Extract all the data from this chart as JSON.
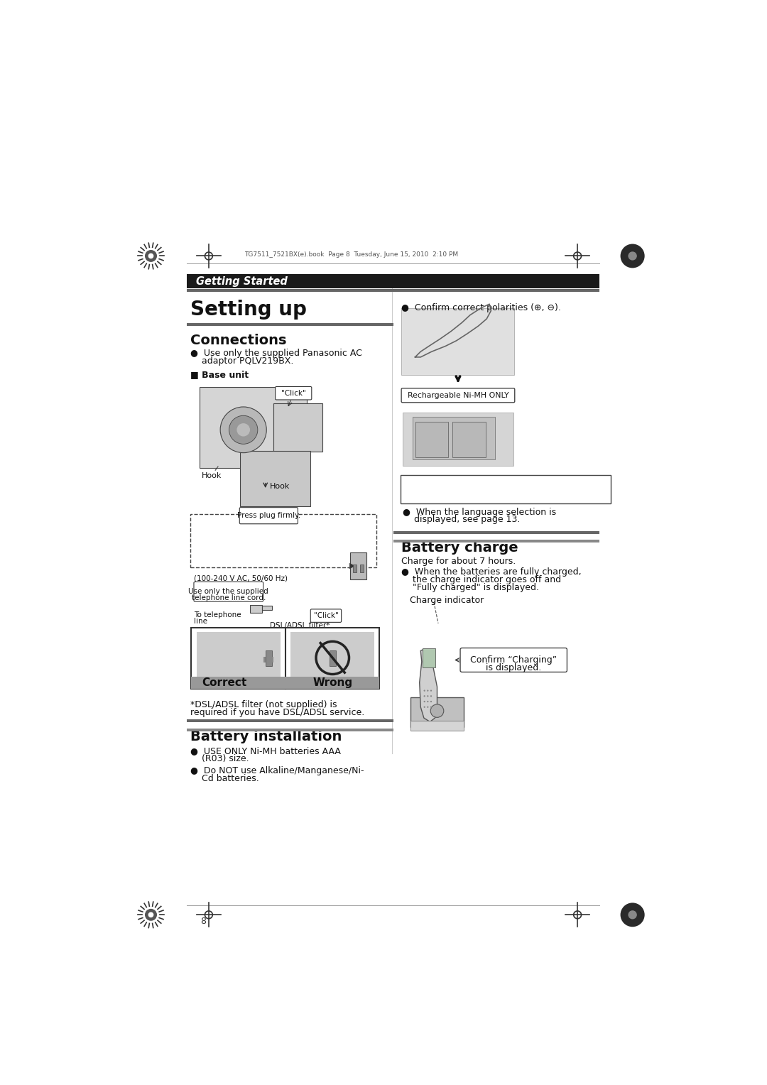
{
  "bg_color": "#ffffff",
  "page_width": 10.8,
  "page_height": 15.28,
  "header_bar_color": "#1a1a1a",
  "header_text": "Getting Started",
  "header_text_color": "#ffffff",
  "title": "Setting up",
  "title_fontsize": 20,
  "section1_heading": "Connections",
  "section1_heading_fontsize": 14,
  "section1_bullet1_line1": "●  Use only the supplied Panasonic AC",
  "section1_bullet1_line2": "    adaptor PQLV219BX.",
  "section1_subhead": "■ Base unit",
  "correct_label": "Correct",
  "wrong_label": "Wrong",
  "dsl_note_line1": "*DSL/ADSL filter (not supplied) is",
  "dsl_note_line2": "required if you have DSL/ADSL service.",
  "section2_heading": "Battery installation",
  "section2_heading_fontsize": 14,
  "section2_bullet1_line1": "●  USE ONLY Ni-MH batteries AAA",
  "section2_bullet1_line2": "    (R03) size.",
  "section2_bullet2_line1": "●  Do NOT use Alkaline/Manganese/Ni-",
  "section2_bullet2_line2": "    Cd batteries.",
  "right_bullet1": "●  Confirm correct polarities (⊕, ⊖).",
  "rechargeable_label": "Rechargeable Ni-MH ONLY",
  "lang_note_line1": "●  When the language selection is",
  "lang_note_line2": "    displayed, see page 13.",
  "section3_heading": "Battery charge",
  "section3_heading_fontsize": 14,
  "section3_intro": "Charge for about 7 hours.",
  "section3_b1_line1": "●  When the batteries are fully charged,",
  "section3_b1_line2": "    the charge indicator goes off and",
  "section3_b1_line3": "    \"Fully charged\" is displayed.",
  "charge_indicator_label": "Charge indicator",
  "confirm_line1": "Confirm “Charging”",
  "confirm_line2": "is displayed.",
  "hook_label1": "Hook",
  "hook_label2": "Hook",
  "press_plug": "Press plug firmly.",
  "voltage_label": "(100-240 V AC, 50/60 Hz)",
  "use_only_cord_line1": "Use only the supplied",
  "use_only_cord_line2": "telephone line cord.",
  "to_tel_line1": "To telephone",
  "to_tel_line2": "line",
  "dsl_filter": "DSL/ADSL filter*",
  "click1": "\"Click\"",
  "click2": "\"Click\"",
  "page_number": "8",
  "file_label": "TG7511_7521BX(e).book  Page 8  Tuesday, June 15, 2010  2:10 PM",
  "body_fontsize": 9,
  "small_fontsize": 8
}
